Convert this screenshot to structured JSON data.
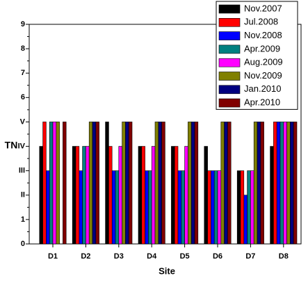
{
  "chart_data": {
    "type": "bar",
    "categories": [
      "D1",
      "D2",
      "D3",
      "D4",
      "D5",
      "D6",
      "D7",
      "D8"
    ],
    "x_label": "Site",
    "y_label": "TN",
    "ylim": [
      0,
      9.0
    ],
    "yticks": [
      0,
      1,
      {
        "value": 2,
        "label": "II"
      },
      {
        "value": 3,
        "label": "III"
      },
      {
        "value": 4,
        "label": "IV"
      },
      {
        "value": 5,
        "label": "V"
      },
      6,
      7,
      8,
      9
    ],
    "legend": "top-right",
    "series": [
      {
        "name": "Nov.2007",
        "color": "#000000",
        "values": [
          4,
          4,
          5,
          4,
          4,
          4,
          3,
          4
        ]
      },
      {
        "name": "Jul.2008",
        "color": "#ff0000",
        "values": [
          5,
          4,
          4,
          4,
          4,
          3,
          3,
          5
        ]
      },
      {
        "name": "Nov.2008",
        "color": "#0000ff",
        "values": [
          3,
          3,
          3,
          3,
          3,
          3,
          2,
          5
        ]
      },
      {
        "name": "Apr.2009",
        "color": "#008080",
        "values": [
          5,
          4,
          3,
          3,
          3,
          3,
          3,
          5
        ]
      },
      {
        "name": "Aug.2009",
        "color": "#ff00ff",
        "values": [
          5,
          4,
          4,
          4,
          4,
          3,
          3,
          5
        ]
      },
      {
        "name": "Nov.2009",
        "color": "#808000",
        "values": [
          5,
          5,
          5,
          5,
          5,
          5,
          5,
          5
        ]
      },
      {
        "name": "Jan.2010",
        "color": "#000080",
        "values": [
          0,
          5,
          5,
          5,
          5,
          5,
          5,
          5
        ]
      },
      {
        "name": "Apr.2010",
        "color": "#800000",
        "values": [
          5,
          5,
          5,
          5,
          5,
          5,
          5,
          5
        ]
      }
    ]
  }
}
